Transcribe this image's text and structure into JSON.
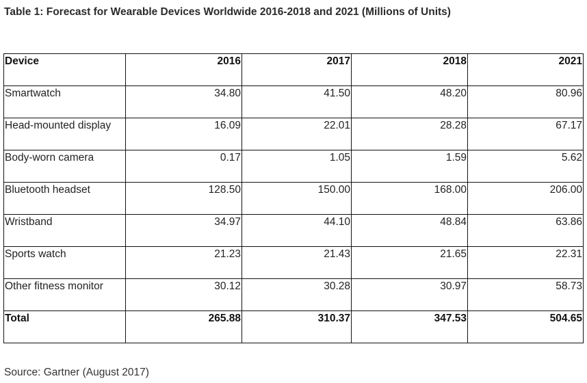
{
  "title": "Table 1: Forecast for Wearable Devices Worldwide 2016-2018 and 2021 (Millions of Units)",
  "table": {
    "headers": [
      "Device",
      "2016",
      "2017",
      "2018",
      "2021"
    ],
    "rows": [
      {
        "device": "Smartwatch",
        "y2016": "34.80",
        "y2017": "41.50",
        "y2018": "48.20",
        "y2021": "80.96"
      },
      {
        "device": "Head-mounted display",
        "y2016": "16.09",
        "y2017": "22.01",
        "y2018": "28.28",
        "y2021": "67.17"
      },
      {
        "device": "Body-worn camera",
        "y2016": "0.17",
        "y2017": "1.05",
        "y2018": "1.59",
        "y2021": "5.62"
      },
      {
        "device": "Bluetooth headset",
        "y2016": "128.50",
        "y2017": "150.00",
        "y2018": "168.00",
        "y2021": "206.00"
      },
      {
        "device": "Wristband",
        "y2016": "34.97",
        "y2017": "44.10",
        "y2018": "48.84",
        "y2021": "63.86"
      },
      {
        "device": "Sports watch",
        "y2016": "21.23",
        "y2017": "21.43",
        "y2018": "21.65",
        "y2021": "22.31"
      },
      {
        "device": "Other fitness monitor",
        "y2016": "30.12",
        "y2017": "30.28",
        "y2018": "30.97",
        "y2021": "58.73"
      }
    ],
    "total": {
      "device": "Total",
      "y2016": "265.88",
      "y2017": "310.37",
      "y2018": "347.53",
      "y2021": "504.65"
    }
  },
  "source": "Source: Gartner (August 2017)"
}
